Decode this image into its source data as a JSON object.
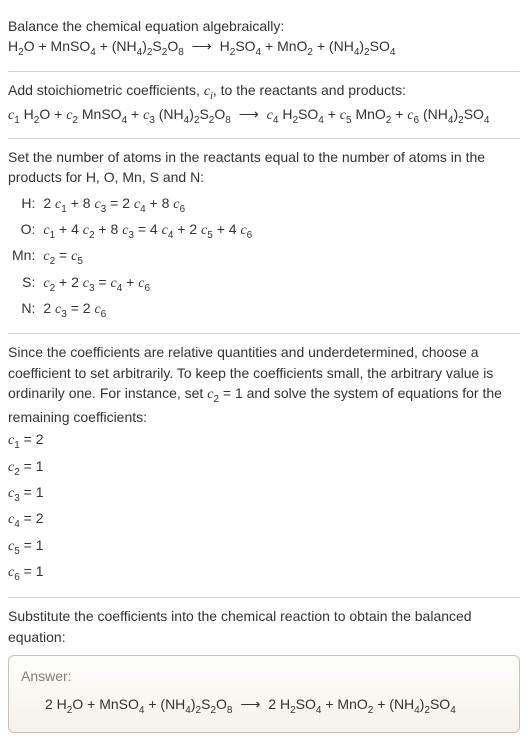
{
  "text_color": "#333333",
  "rule_color": "#d9d2c9",
  "answer_bg_top": "#fdfdfb",
  "answer_bg_bottom": "#f5f2eb",
  "answer_border": "#c9c0b4",
  "answer_label_color": "#888070",
  "fontsize_body": 14,
  "fontsize_sub": 10,
  "s1_line1": "Balance the chemical equation algebraically:",
  "s2_line1": "Add stoichiometric coefficients, ",
  "s2_ci": "c",
  "s2_i": "i",
  "s2_line1b": ", to the reactants and products:",
  "s3_intro": "Set the number of atoms in the reactants equal to the number of atoms in the products for H, O, Mn, S and N:",
  "atom_rows": [
    "H:",
    "O:",
    "Mn:",
    "S:",
    "N:"
  ],
  "s4_text_a": "Since the coefficients are relative quantities and underdetermined, choose a coefficient to set arbitrarily. To keep the coefficients small, the arbitrary value is ordinarily one. For instance, set ",
  "s4_text_b": " and solve the system of equations for the remaining coefficients:",
  "coef_values": [
    "2",
    "1",
    "1",
    "2",
    "1",
    "1"
  ],
  "s5_text": "Substitute the coefficients into the chemical reaction to obtain the balanced equation:",
  "answer_label": "Answer:"
}
